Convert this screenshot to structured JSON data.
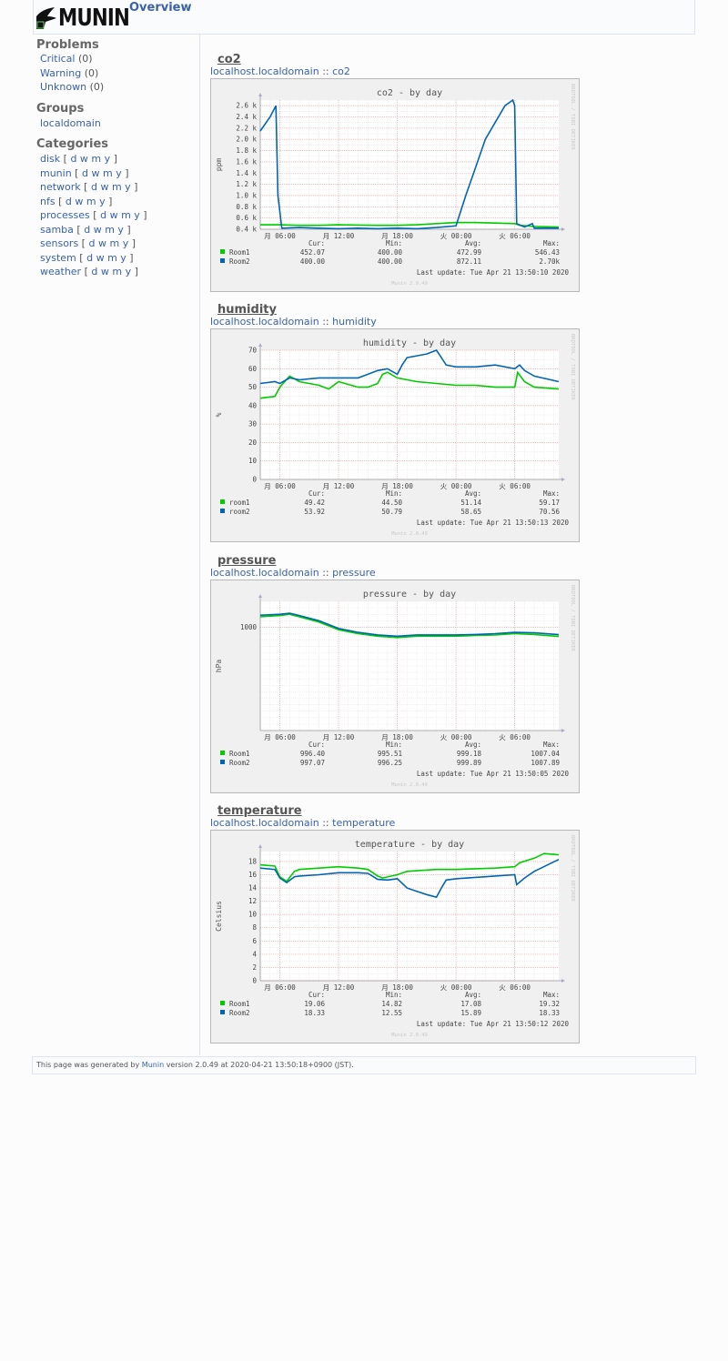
{
  "header": {
    "logo_text": "MUNIN",
    "overview_label": "Overview"
  },
  "sidebar": {
    "problems_title": "Problems",
    "problems": [
      {
        "label": "Critical",
        "count": "(0)"
      },
      {
        "label": "Warning",
        "count": "(0)"
      },
      {
        "label": "Unknown",
        "count": "(0)"
      }
    ],
    "groups_title": "Groups",
    "groups": [
      "localdomain"
    ],
    "categories_title": "Categories",
    "categories": [
      "disk",
      "munin",
      "network",
      "nfs",
      "processes",
      "samba",
      "sensors",
      "system",
      "weather"
    ],
    "period_links": [
      "d",
      "w",
      "m",
      "y"
    ]
  },
  "colors": {
    "green": "#00cc00",
    "blue": "#0066b3",
    "background": "#f0f0f0",
    "plot": "#ffffff",
    "link": "#3a62a8"
  },
  "sections": [
    {
      "title": "co2",
      "host": "localhost.localdomain",
      "separator": "::",
      "plugin": "co2",
      "chart_data": {
        "type": "line",
        "title": "co2 - by day",
        "ylabel": "ppm",
        "ylim": [
          400,
          2700
        ],
        "yticks": [
          "0.4 k",
          "0.6 k",
          "0.8 k",
          "1.0 k",
          "1.2 k",
          "1.4 k",
          "1.6 k",
          "1.8 k",
          "2.0 k",
          "2.2 k",
          "2.4 k",
          "2.6 k"
        ],
        "ytick_values": [
          400,
          600,
          800,
          1000,
          1200,
          1400,
          1600,
          1800,
          2000,
          2200,
          2400,
          2600
        ],
        "xlim": [
          0,
          30.5
        ],
        "xticks": [
          "月 06:00",
          "月 12:00",
          "月 18:00",
          "火 00:00",
          "火 06:00",
          "火 12:00"
        ],
        "xtick_values": [
          2,
          8,
          14,
          20,
          26,
          32
        ],
        "series": [
          {
            "name": "Room1",
            "color": "#00cc00",
            "x": [
              0,
              2,
              4,
              6,
              8,
              10,
              12,
              14,
              16,
              18,
              20,
              22,
              24,
              26,
              26.5,
              28,
              30.5
            ],
            "y": [
              480,
              480,
              470,
              470,
              480,
              475,
              470,
              470,
              480,
              500,
              520,
              520,
              510,
              500,
              470,
              450,
              440
            ]
          },
          {
            "name": "Room2",
            "color": "#0066b3",
            "x": [
              0,
              1,
              1.6,
              1.8,
              2.2,
              4,
              6,
              8,
              10,
              12,
              14,
              16,
              18,
              20,
              21,
              22,
              23,
              24,
              25,
              25.8,
              26,
              26.2,
              27,
              27.8,
              28,
              30.5
            ],
            "y": [
              2150,
              2400,
              2600,
              1000,
              420,
              430,
              420,
              410,
              420,
              410,
              420,
              410,
              430,
              460,
              1000,
              1500,
              2000,
              2300,
              2600,
              2700,
              2600,
              500,
              440,
              500,
              420,
              420
            ]
          }
        ],
        "legend": [
          {
            "name": "Room1",
            "cur": "452.07",
            "min": "400.00",
            "avg": "472.99",
            "max": "546.43"
          },
          {
            "name": "Room2",
            "cur": "400.00",
            "min": "400.00",
            "avg": "872.11",
            "max": "2.70k"
          }
        ],
        "last_update": "Last update: Tue Apr 21 13:50:10 2020"
      }
    },
    {
      "title": "humidity",
      "host": "localhost.localdomain",
      "separator": "::",
      "plugin": "humidity",
      "chart_data": {
        "type": "line",
        "title": "humidity - by day",
        "ylabel": "%",
        "ylim": [
          0,
          70
        ],
        "yticks": [
          "0",
          "10",
          "20",
          "30",
          "40",
          "50",
          "60",
          "70"
        ],
        "ytick_values": [
          0,
          10,
          20,
          30,
          40,
          50,
          60,
          70
        ],
        "xlim": [
          0,
          30.5
        ],
        "xticks": [
          "月 06:00",
          "月 12:00",
          "月 18:00",
          "火 00:00",
          "火 06:00",
          "火 12:00"
        ],
        "xtick_values": [
          2,
          8,
          14,
          20,
          26,
          32
        ],
        "series": [
          {
            "name": "room1",
            "color": "#00cc00",
            "x": [
              0,
              1.5,
              2,
              3,
              4,
              6,
              7,
              8,
              10,
              11,
              12,
              12.5,
              13,
              14,
              16,
              18,
              20,
              22,
              24,
              26,
              26.3,
              27,
              28,
              30.5
            ],
            "y": [
              44,
              45,
              50,
              56,
              53,
              51,
              49,
              53,
              50,
              50,
              52,
              57,
              58,
              55,
              53,
              52,
              51,
              51,
              50,
              50,
              58,
              53,
              50,
              49
            ]
          },
          {
            "name": "room2",
            "color": "#0066b3",
            "x": [
              0,
              1.5,
              2,
              3,
              4,
              6,
              8,
              10,
              11,
              12,
              13,
              14,
              14.5,
              15,
              16,
              17,
              18,
              18.5,
              19,
              20,
              22,
              24,
              26,
              26.5,
              27,
              28,
              30.5
            ],
            "y": [
              52,
              53,
              52,
              55,
              54,
              55,
              55,
              55,
              57,
              59,
              60,
              57,
              62,
              66,
              67,
              68,
              70,
              66,
              62,
              61,
              61,
              62,
              60,
              62,
              59,
              56,
              53
            ]
          }
        ],
        "legend": [
          {
            "name": "room1",
            "cur": "49.42",
            "min": "44.50",
            "avg": "51.14",
            "max": "59.17"
          },
          {
            "name": "room2",
            "cur": "53.92",
            "min": "50.79",
            "avg": "58.65",
            "max": "70.56"
          }
        ],
        "last_update": "Last update: Tue Apr 21 13:50:13 2020"
      }
    },
    {
      "title": "pressure",
      "host": "localhost.localdomain",
      "separator": "::",
      "plugin": "pressure",
      "chart_data": {
        "type": "line",
        "title": "pressure - by day",
        "ylabel": "hPa",
        "ylim": [
          960,
          1010
        ],
        "yticks": [
          "1000"
        ],
        "ytick_values": [
          1000
        ],
        "xlim": [
          0,
          30.5
        ],
        "xticks": [
          "月 06:00",
          "月 12:00",
          "月 18:00",
          "火 00:00",
          "火 06:00",
          "火 12:00"
        ],
        "xtick_values": [
          2,
          8,
          14,
          20,
          26,
          32
        ],
        "series": [
          {
            "name": "Room1",
            "color": "#00cc00",
            "x": [
              0,
              2,
              3,
              4,
              6,
              8,
              10,
              12,
              14,
              16,
              18,
              20,
              22,
              24,
              26,
              28,
              30.5
            ],
            "y": [
              1004,
              1004.5,
              1005,
              1004,
              1002,
              999,
              997.5,
              996.5,
              996,
              996.5,
              996.5,
              996.5,
              996.8,
              997,
              997.5,
              997.2,
              996.4
            ]
          },
          {
            "name": "Room2",
            "color": "#0066b3",
            "x": [
              0,
              2,
              3,
              4,
              6,
              8,
              10,
              12,
              14,
              16,
              18,
              20,
              22,
              24,
              26,
              28,
              30.5
            ],
            "y": [
              1004.6,
              1005,
              1005.4,
              1004.5,
              1002.5,
              999.5,
              998,
              997,
              996.5,
              997,
              997,
              997,
              997.2,
              997.5,
              998,
              997.8,
              997.1
            ]
          }
        ],
        "legend": [
          {
            "name": "Room1",
            "cur": "996.40",
            "min": "995.51",
            "avg": "999.18",
            "max": "1007.04"
          },
          {
            "name": "Room2",
            "cur": "997.07",
            "min": "996.25",
            "avg": "999.89",
            "max": "1007.89"
          }
        ],
        "last_update": "Last update: Tue Apr 21 13:50:05 2020"
      }
    },
    {
      "title": "temperature",
      "host": "localhost.localdomain",
      "separator": "::",
      "plugin": "temperature",
      "chart_data": {
        "type": "line",
        "title": "temperature - by day",
        "ylabel": "Celsius",
        "ylim": [
          0,
          19.5
        ],
        "yticks": [
          "0",
          "2",
          "4",
          "6",
          "8",
          "10",
          "12",
          "14",
          "16",
          "18"
        ],
        "ytick_values": [
          0,
          2,
          4,
          6,
          8,
          10,
          12,
          14,
          16,
          18
        ],
        "xlim": [
          0,
          30.5
        ],
        "xticks": [
          "月 06:00",
          "月 12:00",
          "月 18:00",
          "火 00:00",
          "火 06:00",
          "火 12:00"
        ],
        "xtick_values": [
          2,
          8,
          14,
          20,
          26,
          32
        ],
        "series": [
          {
            "name": "Room1",
            "color": "#00cc00",
            "x": [
              0,
              1.5,
              2,
              2.7,
              3.5,
              4,
              6,
              8,
              10,
              11,
              12,
              12.5,
              14,
              15,
              16,
              18,
              20,
              22,
              24,
              26,
              26.5,
              28,
              29,
              30.5
            ],
            "y": [
              17.5,
              17.3,
              15.7,
              15,
              16.5,
              16.8,
              17,
              17.2,
              17,
              16.8,
              15.8,
              15.5,
              16,
              16.5,
              16.6,
              16.8,
              16.8,
              16.9,
              17,
              17.2,
              17.8,
              18.5,
              19.2,
              19
            ]
          },
          {
            "name": "Room2",
            "color": "#0066b3",
            "x": [
              0,
              1.5,
              2,
              2.7,
              3.5,
              4,
              6,
              8,
              10,
              11,
              12,
              13,
              14,
              15,
              16,
              17,
              18,
              18.5,
              19,
              20,
              22,
              24,
              26,
              26.2,
              27,
              28,
              30.5
            ],
            "y": [
              17,
              16.8,
              15.5,
              14.8,
              15.7,
              15.8,
              16,
              16.3,
              16.3,
              16.2,
              15.3,
              15.2,
              15.4,
              14,
              13.5,
              13,
              12.6,
              14,
              15.2,
              15.4,
              15.6,
              15.8,
              16,
              14.5,
              15.5,
              16.5,
              18.3
            ]
          }
        ],
        "legend": [
          {
            "name": "Room1",
            "cur": "19.06",
            "min": "14.82",
            "avg": "17.08",
            "max": "19.32"
          },
          {
            "name": "Room2",
            "cur": "18.33",
            "min": "12.55",
            "avg": "15.89",
            "max": "18.33"
          }
        ],
        "last_update": "Last update: Tue Apr 21 13:50:12 2020"
      }
    }
  ],
  "legend_headers": {
    "cur": "Cur:",
    "min": "Min:",
    "avg": "Avg:",
    "max": "Max:"
  },
  "watermark": "RRDTOOL / TOBI OETIKER",
  "version_mark": "Munin 2.0.49",
  "footer": {
    "prefix": "This page was generated by",
    "link": "Munin",
    "suffix": "version 2.0.49 at 2020-04-21 13:50:18+0900 (JST)."
  }
}
